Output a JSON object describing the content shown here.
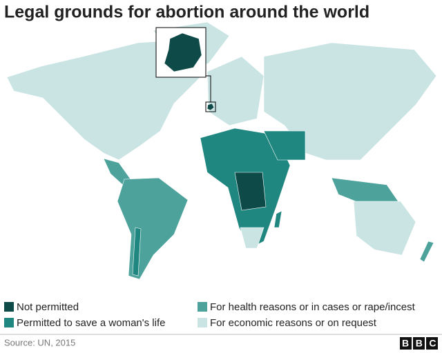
{
  "title": "Legal grounds for abortion around the world",
  "legend": [
    {
      "label": "Not permitted",
      "color": "#0e4b48"
    },
    {
      "label": "Permitted to save a woman's life",
      "color": "#1f8780"
    },
    {
      "label": "For health reasons or in cases or rape/incest",
      "color": "#4da39c"
    },
    {
      "label": "For economic reasons or on request",
      "color": "#c9e4e3"
    }
  ],
  "source": "Source: UN, 2015",
  "logo": "BBC"
}
